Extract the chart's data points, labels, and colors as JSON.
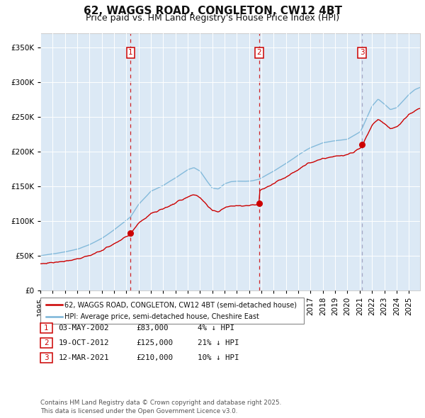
{
  "title": "62, WAGGS ROAD, CONGLETON, CW12 4BT",
  "subtitle": "Price paid vs. HM Land Registry's House Price Index (HPI)",
  "bg_color": "#dce9f5",
  "hpi_color": "#7ab5d8",
  "price_color": "#cc0000",
  "marker_color": "#cc0000",
  "sale_dates": [
    2002.35,
    2012.8,
    2021.19
  ],
  "sale_prices": [
    83000,
    125000,
    210000
  ],
  "legend_line1": "62, WAGGS ROAD, CONGLETON, CW12 4BT (semi-detached house)",
  "legend_line2": "HPI: Average price, semi-detached house, Cheshire East",
  "table_entries": [
    {
      "num": "1",
      "date": "03-MAY-2002",
      "price": "£83,000",
      "pct": "4% ↓ HPI"
    },
    {
      "num": "2",
      "date": "19-OCT-2012",
      "price": "£125,000",
      "pct": "21% ↓ HPI"
    },
    {
      "num": "3",
      "date": "12-MAR-2021",
      "price": "£210,000",
      "pct": "10% ↓ HPI"
    }
  ],
  "footnote": "Contains HM Land Registry data © Crown copyright and database right 2025.\nThis data is licensed under the Open Government Licence v3.0.",
  "ylim": [
    0,
    370000
  ],
  "yticks": [
    0,
    50000,
    100000,
    150000,
    200000,
    250000,
    300000,
    350000
  ],
  "ytick_labels": [
    "£0",
    "£50K",
    "£100K",
    "£150K",
    "£200K",
    "£250K",
    "£300K",
    "£350K"
  ],
  "xstart": 1995.0,
  "xend": 2025.9,
  "title_fontsize": 11,
  "subtitle_fontsize": 9,
  "axis_fontsize": 7.5
}
